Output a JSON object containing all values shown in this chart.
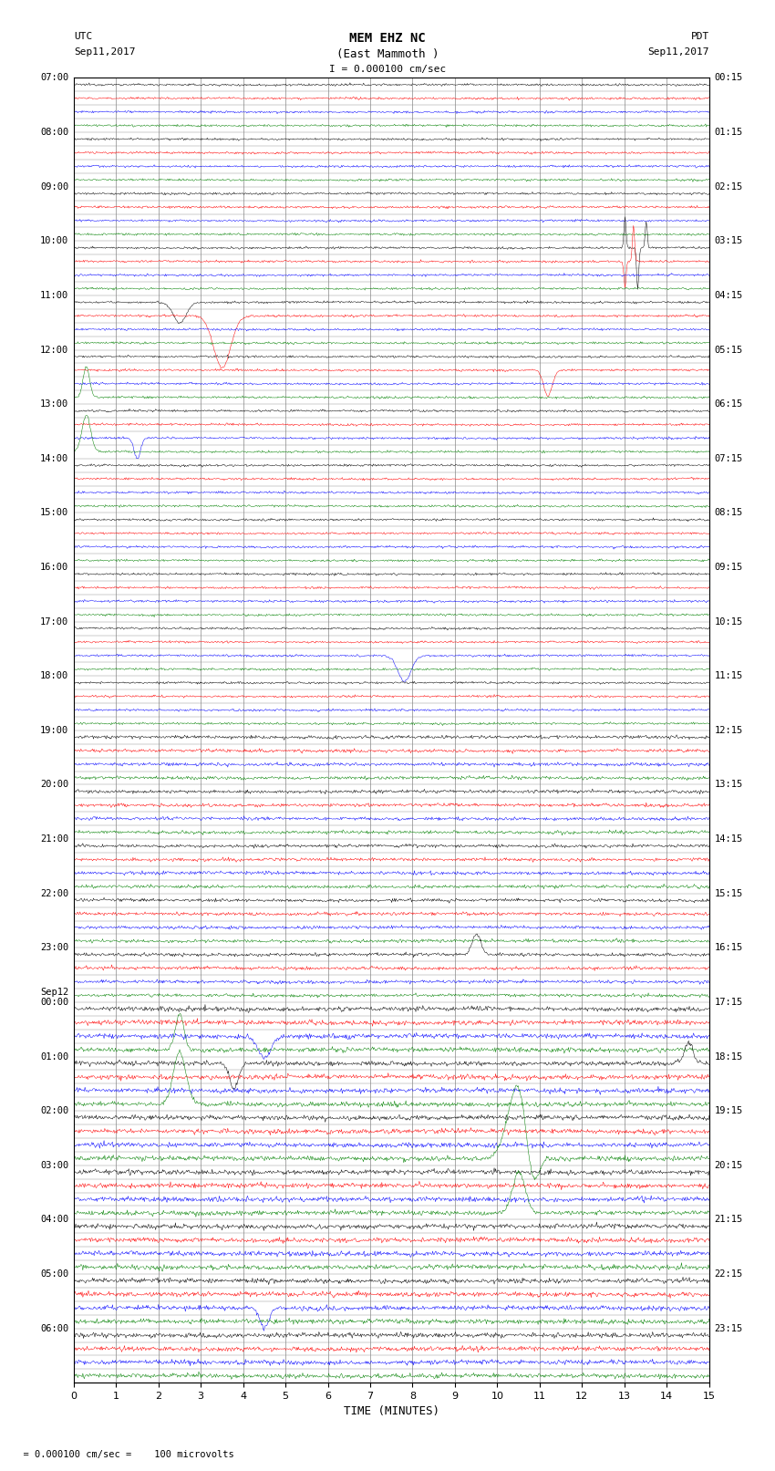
{
  "title_line1": "MEM EHZ NC",
  "title_line2": "(East Mammoth )",
  "scale_label": "I = 0.000100 cm/sec",
  "utc_label": "UTC",
  "utc_date": "Sep11,2017",
  "pdt_label": "PDT",
  "pdt_date": "Sep11,2017",
  "bottom_note": "  = 0.000100 cm/sec =    100 microvolts",
  "xlabel": "TIME (MINUTES)",
  "background_color": "#ffffff",
  "trace_colors": [
    "black",
    "red",
    "blue",
    "green"
  ],
  "grid_color": "#888888",
  "trace_lw": 0.35,
  "noise_base": 0.1,
  "amp_scale": 0.38
}
